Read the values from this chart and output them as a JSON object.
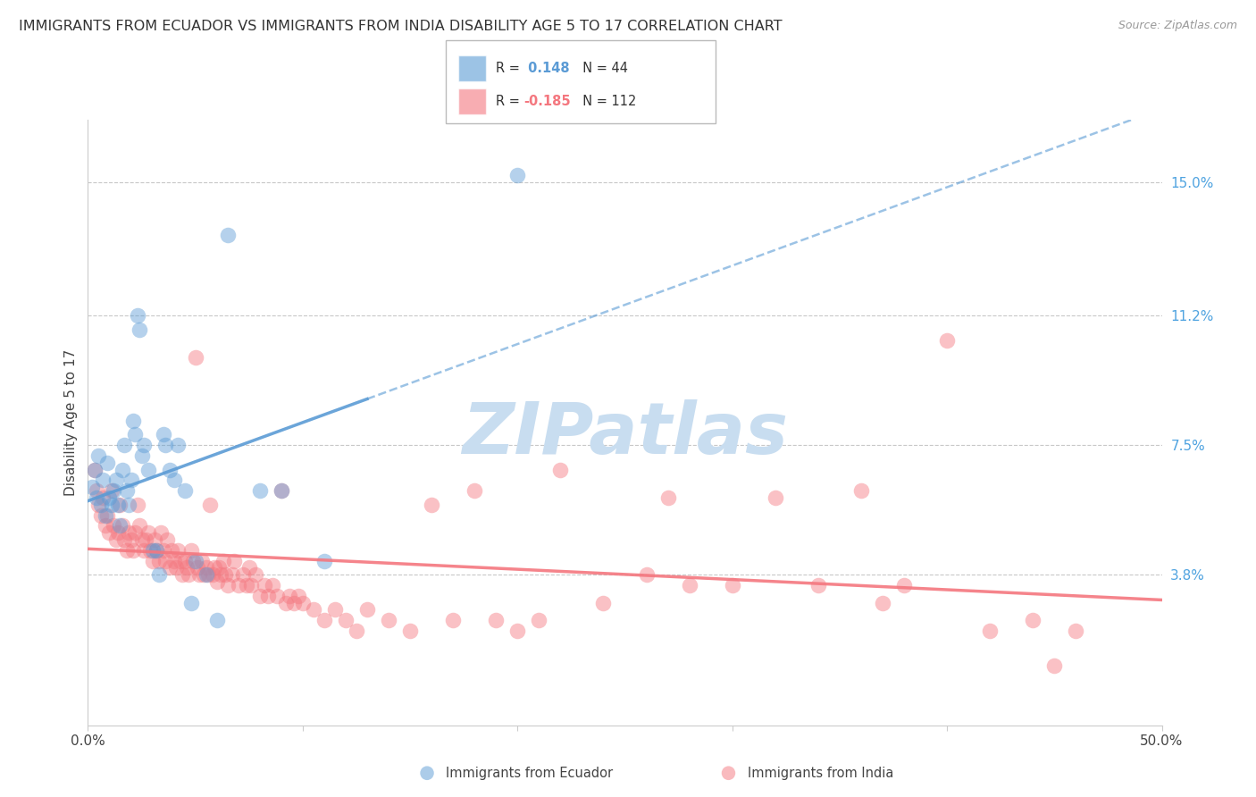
{
  "title": "IMMIGRANTS FROM ECUADOR VS IMMIGRANTS FROM INDIA DISABILITY AGE 5 TO 17 CORRELATION CHART",
  "source": "Source: ZipAtlas.com",
  "ylabel": "Disability Age 5 to 17",
  "ytick_labels": [
    "15.0%",
    "11.2%",
    "7.5%",
    "3.8%"
  ],
  "ytick_values": [
    0.15,
    0.112,
    0.075,
    0.038
  ],
  "xlim": [
    0.0,
    0.5
  ],
  "ylim": [
    -0.005,
    0.168
  ],
  "ecuador_color": "#5b9bd5",
  "india_color": "#f4777f",
  "ecuador_R": 0.148,
  "ecuador_N": 44,
  "india_R": -0.185,
  "india_N": 112,
  "watermark": "ZIPatlas",
  "legend_label_ecuador": "Immigrants from Ecuador",
  "legend_label_india": "Immigrants from India",
  "ecuador_points": [
    [
      0.002,
      0.063
    ],
    [
      0.003,
      0.068
    ],
    [
      0.004,
      0.06
    ],
    [
      0.005,
      0.072
    ],
    [
      0.006,
      0.058
    ],
    [
      0.007,
      0.065
    ],
    [
      0.008,
      0.055
    ],
    [
      0.009,
      0.07
    ],
    [
      0.01,
      0.06
    ],
    [
      0.011,
      0.058
    ],
    [
      0.012,
      0.062
    ],
    [
      0.013,
      0.065
    ],
    [
      0.014,
      0.058
    ],
    [
      0.015,
      0.052
    ],
    [
      0.016,
      0.068
    ],
    [
      0.017,
      0.075
    ],
    [
      0.018,
      0.062
    ],
    [
      0.019,
      0.058
    ],
    [
      0.02,
      0.065
    ],
    [
      0.021,
      0.082
    ],
    [
      0.022,
      0.078
    ],
    [
      0.023,
      0.112
    ],
    [
      0.024,
      0.108
    ],
    [
      0.025,
      0.072
    ],
    [
      0.026,
      0.075
    ],
    [
      0.028,
      0.068
    ],
    [
      0.03,
      0.045
    ],
    [
      0.032,
      0.045
    ],
    [
      0.033,
      0.038
    ],
    [
      0.035,
      0.078
    ],
    [
      0.036,
      0.075
    ],
    [
      0.038,
      0.068
    ],
    [
      0.04,
      0.065
    ],
    [
      0.042,
      0.075
    ],
    [
      0.045,
      0.062
    ],
    [
      0.048,
      0.03
    ],
    [
      0.05,
      0.042
    ],
    [
      0.055,
      0.038
    ],
    [
      0.06,
      0.025
    ],
    [
      0.065,
      0.135
    ],
    [
      0.08,
      0.062
    ],
    [
      0.09,
      0.062
    ],
    [
      0.11,
      0.042
    ],
    [
      0.2,
      0.152
    ]
  ],
  "india_points": [
    [
      0.003,
      0.068
    ],
    [
      0.004,
      0.062
    ],
    [
      0.005,
      0.058
    ],
    [
      0.006,
      0.055
    ],
    [
      0.007,
      0.06
    ],
    [
      0.008,
      0.052
    ],
    [
      0.009,
      0.055
    ],
    [
      0.01,
      0.05
    ],
    [
      0.011,
      0.062
    ],
    [
      0.012,
      0.052
    ],
    [
      0.013,
      0.048
    ],
    [
      0.014,
      0.05
    ],
    [
      0.015,
      0.058
    ],
    [
      0.016,
      0.052
    ],
    [
      0.017,
      0.048
    ],
    [
      0.018,
      0.045
    ],
    [
      0.019,
      0.05
    ],
    [
      0.02,
      0.048
    ],
    [
      0.021,
      0.045
    ],
    [
      0.022,
      0.05
    ],
    [
      0.023,
      0.058
    ],
    [
      0.024,
      0.052
    ],
    [
      0.025,
      0.048
    ],
    [
      0.026,
      0.045
    ],
    [
      0.027,
      0.048
    ],
    [
      0.028,
      0.05
    ],
    [
      0.029,
      0.045
    ],
    [
      0.03,
      0.042
    ],
    [
      0.031,
      0.048
    ],
    [
      0.032,
      0.045
    ],
    [
      0.033,
      0.042
    ],
    [
      0.034,
      0.05
    ],
    [
      0.035,
      0.045
    ],
    [
      0.036,
      0.042
    ],
    [
      0.037,
      0.048
    ],
    [
      0.038,
      0.04
    ],
    [
      0.039,
      0.045
    ],
    [
      0.04,
      0.042
    ],
    [
      0.041,
      0.04
    ],
    [
      0.042,
      0.045
    ],
    [
      0.043,
      0.042
    ],
    [
      0.044,
      0.038
    ],
    [
      0.045,
      0.042
    ],
    [
      0.046,
      0.04
    ],
    [
      0.047,
      0.038
    ],
    [
      0.048,
      0.045
    ],
    [
      0.049,
      0.042
    ],
    [
      0.05,
      0.1
    ],
    [
      0.051,
      0.04
    ],
    [
      0.052,
      0.038
    ],
    [
      0.053,
      0.042
    ],
    [
      0.054,
      0.038
    ],
    [
      0.055,
      0.04
    ],
    [
      0.056,
      0.038
    ],
    [
      0.057,
      0.058
    ],
    [
      0.058,
      0.038
    ],
    [
      0.059,
      0.04
    ],
    [
      0.06,
      0.036
    ],
    [
      0.061,
      0.04
    ],
    [
      0.062,
      0.038
    ],
    [
      0.063,
      0.042
    ],
    [
      0.064,
      0.038
    ],
    [
      0.065,
      0.035
    ],
    [
      0.067,
      0.038
    ],
    [
      0.068,
      0.042
    ],
    [
      0.07,
      0.035
    ],
    [
      0.072,
      0.038
    ],
    [
      0.074,
      0.035
    ],
    [
      0.075,
      0.04
    ],
    [
      0.076,
      0.035
    ],
    [
      0.078,
      0.038
    ],
    [
      0.08,
      0.032
    ],
    [
      0.082,
      0.035
    ],
    [
      0.084,
      0.032
    ],
    [
      0.086,
      0.035
    ],
    [
      0.088,
      0.032
    ],
    [
      0.09,
      0.062
    ],
    [
      0.092,
      0.03
    ],
    [
      0.094,
      0.032
    ],
    [
      0.096,
      0.03
    ],
    [
      0.098,
      0.032
    ],
    [
      0.1,
      0.03
    ],
    [
      0.105,
      0.028
    ],
    [
      0.11,
      0.025
    ],
    [
      0.115,
      0.028
    ],
    [
      0.12,
      0.025
    ],
    [
      0.125,
      0.022
    ],
    [
      0.13,
      0.028
    ],
    [
      0.14,
      0.025
    ],
    [
      0.15,
      0.022
    ],
    [
      0.16,
      0.058
    ],
    [
      0.17,
      0.025
    ],
    [
      0.18,
      0.062
    ],
    [
      0.19,
      0.025
    ],
    [
      0.2,
      0.022
    ],
    [
      0.21,
      0.025
    ],
    [
      0.22,
      0.068
    ],
    [
      0.24,
      0.03
    ],
    [
      0.26,
      0.038
    ],
    [
      0.27,
      0.06
    ],
    [
      0.28,
      0.035
    ],
    [
      0.3,
      0.035
    ],
    [
      0.32,
      0.06
    ],
    [
      0.34,
      0.035
    ],
    [
      0.36,
      0.062
    ],
    [
      0.37,
      0.03
    ],
    [
      0.38,
      0.035
    ],
    [
      0.4,
      0.105
    ],
    [
      0.42,
      0.022
    ],
    [
      0.44,
      0.025
    ],
    [
      0.45,
      0.012
    ],
    [
      0.46,
      0.022
    ]
  ],
  "background_color": "#ffffff",
  "grid_color": "#c8c8c8",
  "title_fontsize": 11.5,
  "axis_label_fontsize": 11,
  "tick_fontsize": 11,
  "watermark_color": "#c8ddf0",
  "right_ytick_color": "#4fa3e0"
}
